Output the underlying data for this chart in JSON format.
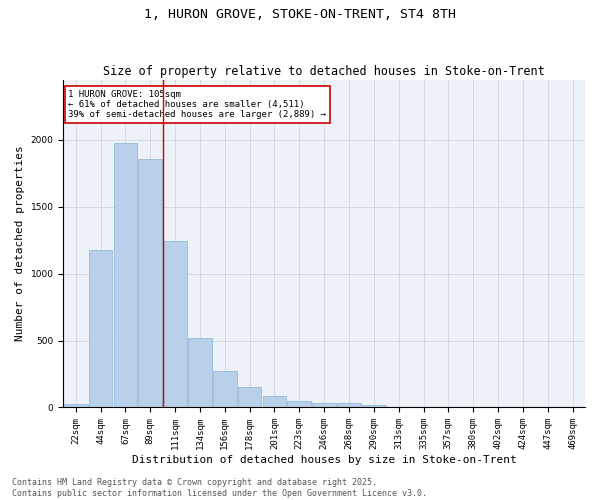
{
  "title_line1": "1, HURON GROVE, STOKE-ON-TRENT, ST4 8TH",
  "title_line2": "Size of property relative to detached houses in Stoke-on-Trent",
  "xlabel": "Distribution of detached houses by size in Stoke-on-Trent",
  "ylabel": "Number of detached properties",
  "categories": [
    "22sqm",
    "44sqm",
    "67sqm",
    "89sqm",
    "111sqm",
    "134sqm",
    "156sqm",
    "178sqm",
    "201sqm",
    "223sqm",
    "246sqm",
    "268sqm",
    "290sqm",
    "313sqm",
    "335sqm",
    "357sqm",
    "380sqm",
    "402sqm",
    "424sqm",
    "447sqm",
    "469sqm"
  ],
  "values": [
    25,
    1175,
    1975,
    1855,
    1245,
    520,
    275,
    155,
    85,
    48,
    35,
    30,
    15,
    5,
    2,
    2,
    1,
    1,
    1,
    1,
    1
  ],
  "bar_color": "#b8d0ea",
  "bar_edge_color": "#8ab4d8",
  "highlight_line_index": 4,
  "annotation_text": "1 HURON GROVE: 105sqm\n← 61% of detached houses are smaller (4,511)\n39% of semi-detached houses are larger (2,889) →",
  "annotation_box_color": "#ffffff",
  "annotation_box_edge_color": "#cc0000",
  "vline_color": "#cc0000",
  "grid_color": "#c8d0dc",
  "background_color": "#edf2f9",
  "footer_line1": "Contains HM Land Registry data © Crown copyright and database right 2025.",
  "footer_line2": "Contains public sector information licensed under the Open Government Licence v3.0.",
  "ylim": [
    0,
    2450
  ],
  "title_fontsize": 9.5,
  "subtitle_fontsize": 8.5,
  "axis_label_fontsize": 8,
  "tick_fontsize": 6.5,
  "annotation_fontsize": 6.5,
  "footer_fontsize": 6
}
